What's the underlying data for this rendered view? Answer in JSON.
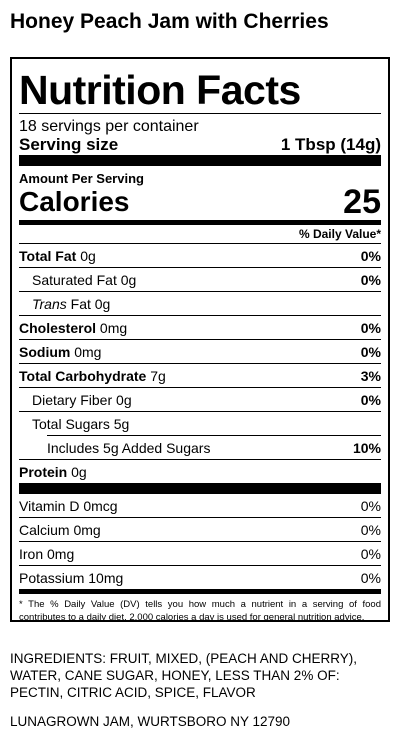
{
  "product": {
    "title": "Honey Peach Jam with Cherries"
  },
  "label": {
    "heading": "Nutrition Facts",
    "servings_per_container": "18 servings per container",
    "serving_size_label": "Serving size",
    "serving_size_value": "1 Tbsp (14g)",
    "amount_per_serving": "Amount Per Serving",
    "calories_label": "Calories",
    "calories_value": "25",
    "dv_header": "% Daily Value*",
    "nutrients": {
      "total_fat": {
        "name": "Total Fat",
        "amount": "0g",
        "dv": "0%"
      },
      "sat_fat": {
        "name": "Saturated Fat",
        "amount": "0g",
        "dv": "0%"
      },
      "trans_fat": {
        "name_italic": "Trans",
        "name_rest": "Fat",
        "amount": "0g"
      },
      "cholesterol": {
        "name": "Cholesterol",
        "amount": "0mg",
        "dv": "0%"
      },
      "sodium": {
        "name": "Sodium",
        "amount": "0mg",
        "dv": "0%"
      },
      "total_carb": {
        "name": "Total Carbohydrate",
        "amount": "7g",
        "dv": "3%"
      },
      "fiber": {
        "name": "Dietary Fiber",
        "amount": "0g",
        "dv": "0%"
      },
      "total_sugars": {
        "name": "Total Sugars",
        "amount": "5g"
      },
      "added_sugars": {
        "text": "Includes 5g Added Sugars",
        "dv": "10%"
      },
      "protein": {
        "name": "Protein",
        "amount": "0g"
      }
    },
    "vitamins": [
      {
        "name": "Vitamin D 0mcg",
        "dv": "0%"
      },
      {
        "name": "Calcium 0mg",
        "dv": "0%"
      },
      {
        "name": "Iron 0mg",
        "dv": "0%"
      },
      {
        "name": "Potassium 10mg",
        "dv": "0%"
      }
    ],
    "footnote": "* The % Daily Value (DV) tells you how much a nutrient in a serving of food contributes to a daily diet. 2,000 calories a day is used for general nutrition advice."
  },
  "ingredients": "INGREDIENTS: FRUIT, MIXED, (PEACH AND CHERRY), WATER, CANE SUGAR, HONEY, LESS THAN 2% OF: PECTIN, CITRIC ACID, SPICE, FLAVOR",
  "manufacturer": "LUNAGROWN JAM, WURTSBORO NY 12790"
}
